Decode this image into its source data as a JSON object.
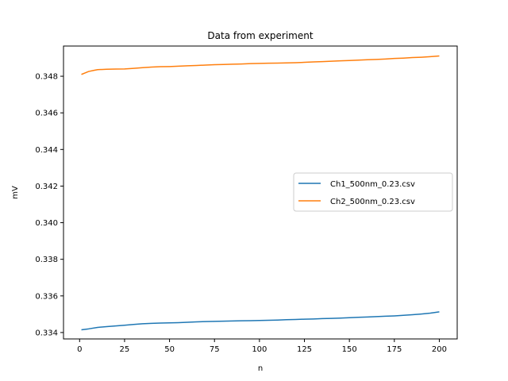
{
  "chart_data": {
    "type": "line",
    "title": "Data from experiment",
    "xlabel": "n",
    "ylabel": "mV",
    "xlim": [
      -8.95,
      209.95
    ],
    "ylim": [
      0.33365,
      0.34965
    ],
    "x_ticks": [
      0,
      25,
      50,
      75,
      100,
      125,
      150,
      175,
      200
    ],
    "x_tick_labels": [
      "0",
      "25",
      "50",
      "75",
      "100",
      "125",
      "150",
      "175",
      "200"
    ],
    "y_ticks": [
      0.334,
      0.336,
      0.338,
      0.34,
      0.342,
      0.344,
      0.346,
      0.348
    ],
    "y_tick_labels": [
      "0.334",
      "0.336",
      "0.338",
      "0.340",
      "0.342",
      "0.344",
      "0.346",
      "0.348"
    ],
    "grid": false,
    "legend_position": "center-right",
    "series": [
      {
        "name": "Ch1_500nm_0.23.csv",
        "color": "#1f77b4",
        "x": [
          1,
          5,
          10,
          15,
          20,
          25,
          30,
          35,
          40,
          45,
          50,
          55,
          60,
          65,
          70,
          75,
          80,
          85,
          90,
          95,
          100,
          105,
          110,
          115,
          120,
          125,
          130,
          135,
          140,
          145,
          150,
          155,
          160,
          165,
          170,
          175,
          180,
          185,
          190,
          195,
          200
        ],
        "y": [
          0.33415,
          0.3342,
          0.33428,
          0.33432,
          0.33436,
          0.3344,
          0.33444,
          0.33448,
          0.3345,
          0.33452,
          0.33453,
          0.33454,
          0.33456,
          0.33458,
          0.3346,
          0.33461,
          0.33462,
          0.33463,
          0.33464,
          0.33465,
          0.33466,
          0.33467,
          0.33468,
          0.3347,
          0.33471,
          0.33473,
          0.33474,
          0.33476,
          0.33477,
          0.33479,
          0.33481,
          0.33483,
          0.33485,
          0.33487,
          0.33489,
          0.33491,
          0.33494,
          0.33497,
          0.33501,
          0.33506,
          0.33513
        ]
      },
      {
        "name": "Ch2_500nm_0.23.csv",
        "color": "#ff7f0e",
        "x": [
          1,
          3,
          5,
          8,
          10,
          15,
          20,
          25,
          30,
          35,
          40,
          45,
          50,
          55,
          60,
          65,
          70,
          75,
          80,
          85,
          90,
          95,
          100,
          105,
          110,
          115,
          120,
          125,
          130,
          135,
          140,
          145,
          150,
          155,
          160,
          165,
          170,
          175,
          180,
          185,
          190,
          195,
          200
        ],
        "y": [
          0.3481,
          0.34818,
          0.34826,
          0.34832,
          0.34836,
          0.34838,
          0.34839,
          0.3484,
          0.34843,
          0.34847,
          0.3485,
          0.34852,
          0.34853,
          0.34855,
          0.34857,
          0.34859,
          0.34861,
          0.34863,
          0.34864,
          0.34866,
          0.34867,
          0.34869,
          0.3487,
          0.34871,
          0.34872,
          0.34873,
          0.34874,
          0.34876,
          0.34878,
          0.3488,
          0.34882,
          0.34884,
          0.34886,
          0.34888,
          0.3489,
          0.34892,
          0.34894,
          0.34897,
          0.34899,
          0.34902,
          0.34904,
          0.34907,
          0.34911
        ]
      }
    ]
  }
}
